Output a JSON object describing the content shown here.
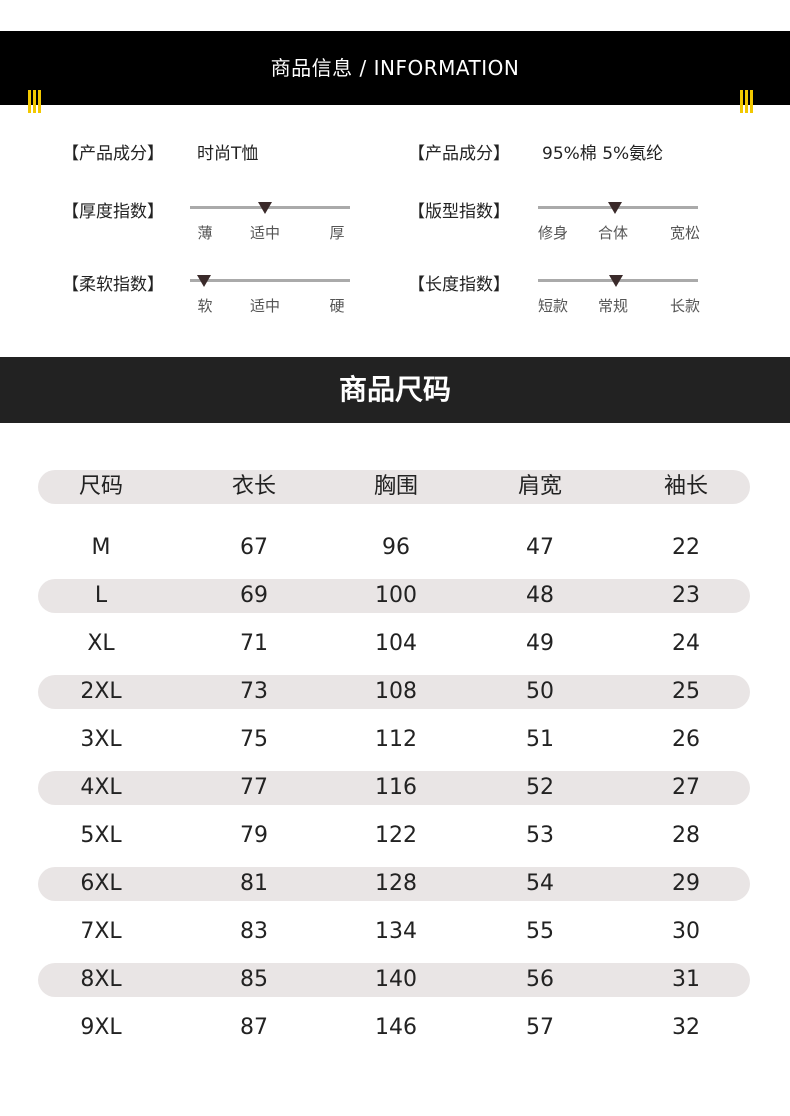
{
  "info_header": {
    "title": "商品信息 / INFORMATION"
  },
  "info": {
    "fabric_left": {
      "label": "【产品成分】",
      "value": "时尚T恤"
    },
    "fabric_right": {
      "label": "【产品成分】",
      "value": "95%棉 5%氨纶"
    },
    "scales": [
      {
        "label": "【厚度指数】",
        "ticks": [
          "薄",
          "适中",
          "厚"
        ],
        "level": 0.47
      },
      {
        "label": "【版型指数】",
        "ticks": [
          "修身",
          "合体",
          "宽松"
        ],
        "level": 0.48
      },
      {
        "label": "【柔软指数】",
        "ticks": [
          "软",
          "适中",
          "硬"
        ],
        "level": 0.09
      },
      {
        "label": "【长度指数】",
        "ticks": [
          "短款",
          "常规",
          "长款"
        ],
        "level": 0.49
      }
    ]
  },
  "size_header": {
    "title": "商品尺码"
  },
  "size_table": {
    "columns": [
      "尺码",
      "衣长",
      "胸围",
      "肩宽",
      "袖长"
    ],
    "rows": [
      [
        "M",
        "67",
        "96",
        "47",
        "22"
      ],
      [
        "L",
        "69",
        "100",
        "48",
        "23"
      ],
      [
        "XL",
        "71",
        "104",
        "49",
        "24"
      ],
      [
        "2XL",
        "73",
        "108",
        "50",
        "25"
      ],
      [
        "3XL",
        "75",
        "112",
        "51",
        "26"
      ],
      [
        "4XL",
        "77",
        "116",
        "52",
        "27"
      ],
      [
        "5XL",
        "79",
        "122",
        "53",
        "28"
      ],
      [
        "6XL",
        "81",
        "128",
        "54",
        "29"
      ],
      [
        "7XL",
        "83",
        "134",
        "55",
        "30"
      ],
      [
        "8XL",
        "85",
        "140",
        "56",
        "31"
      ],
      [
        "9XL",
        "87",
        "146",
        "57",
        "32"
      ]
    ]
  },
  "colors": {
    "accent": "#f2c800",
    "header_bg": "#000000",
    "stripe": "#e9e5e5"
  }
}
